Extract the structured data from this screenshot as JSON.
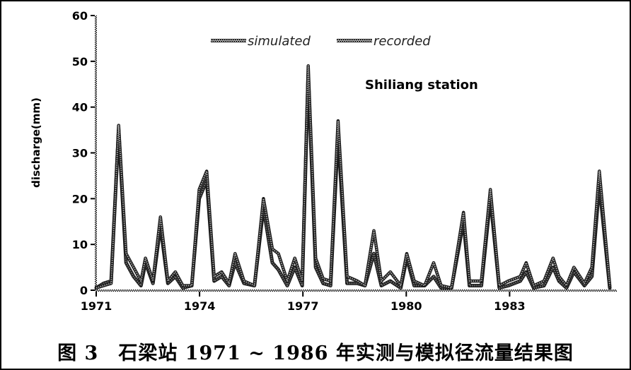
{
  "caption": "图 3　石梁站 1971 ~ 1986 年实测与模拟径流量结果图",
  "chart_data": {
    "type": "line",
    "title": "",
    "annotation": "Shiliang station",
    "xlabel": "",
    "ylabel": "discharge(mm)",
    "ylim": [
      0,
      60
    ],
    "yticks": [
      0,
      10,
      20,
      30,
      40,
      50,
      60
    ],
    "xtick_labels": [
      "1971",
      "1974",
      "1977",
      "1980",
      "1983"
    ],
    "xtick_positions": [
      0,
      3,
      6,
      9,
      12
    ],
    "xlim": [
      0,
      15.5
    ],
    "grid": false,
    "legend_position": "top",
    "series": [
      {
        "name": "simulated",
        "color": "#6e6e6e",
        "points": [
          [
            0.0,
            0.5
          ],
          [
            0.25,
            1.5
          ],
          [
            0.5,
            2
          ],
          [
            0.75,
            35
          ],
          [
            1.0,
            6
          ],
          [
            1.25,
            3
          ],
          [
            1.5,
            1
          ],
          [
            1.65,
            6
          ],
          [
            1.9,
            1.5
          ],
          [
            2.15,
            14
          ],
          [
            2.4,
            1.5
          ],
          [
            2.65,
            3
          ],
          [
            2.9,
            0.5
          ],
          [
            3.2,
            1
          ],
          [
            3.45,
            20
          ],
          [
            3.7,
            24
          ],
          [
            3.95,
            2
          ],
          [
            4.2,
            3
          ],
          [
            4.45,
            1
          ],
          [
            4.65,
            6
          ],
          [
            4.95,
            1.5
          ],
          [
            5.3,
            1
          ],
          [
            5.6,
            18
          ],
          [
            5.9,
            6
          ],
          [
            6.1,
            4.5
          ],
          [
            6.4,
            1
          ],
          [
            6.65,
            5
          ],
          [
            6.9,
            1
          ],
          [
            7.1,
            47
          ],
          [
            7.35,
            5
          ],
          [
            7.6,
            1.5
          ],
          [
            7.85,
            1
          ],
          [
            8.1,
            34
          ],
          [
            8.4,
            1.5
          ],
          [
            8.75,
            1.5
          ],
          [
            9.0,
            1
          ],
          [
            9.3,
            8
          ],
          [
            9.55,
            1
          ],
          [
            9.85,
            2
          ],
          [
            10.2,
            0.5
          ],
          [
            10.4,
            7
          ],
          [
            10.65,
            1
          ],
          [
            11.0,
            1
          ],
          [
            11.3,
            3
          ],
          [
            11.55,
            0.5
          ],
          [
            11.9,
            0.5
          ],
          [
            12.3,
            15
          ],
          [
            12.5,
            1
          ],
          [
            12.9,
            1
          ],
          [
            13.2,
            20
          ],
          [
            13.5,
            0.5
          ],
          [
            13.8,
            1
          ],
          [
            14.2,
            2
          ],
          [
            14.4,
            4
          ],
          [
            14.65,
            0.5
          ],
          [
            15.0,
            1
          ],
          [
            15.3,
            5
          ],
          [
            15.5,
            2
          ],
          [
            15.75,
            0.5
          ],
          [
            16.0,
            4
          ],
          [
            16.35,
            1
          ],
          [
            16.6,
            3
          ],
          [
            16.85,
            23
          ],
          [
            17.2,
            0.5
          ]
        ]
      },
      {
        "name": "recorded",
        "color": "#a8a8a8",
        "points": [
          [
            0.0,
            0.5
          ],
          [
            0.25,
            1
          ],
          [
            0.5,
            1.5
          ],
          [
            0.75,
            36
          ],
          [
            1.0,
            8
          ],
          [
            1.25,
            5
          ],
          [
            1.5,
            2
          ],
          [
            1.65,
            7
          ],
          [
            1.9,
            2
          ],
          [
            2.15,
            16
          ],
          [
            2.4,
            2
          ],
          [
            2.65,
            4
          ],
          [
            2.9,
            1
          ],
          [
            3.2,
            1
          ],
          [
            3.45,
            22
          ],
          [
            3.7,
            26
          ],
          [
            3.95,
            3
          ],
          [
            4.2,
            4
          ],
          [
            4.45,
            1.5
          ],
          [
            4.65,
            8
          ],
          [
            4.95,
            2
          ],
          [
            5.3,
            1
          ],
          [
            5.6,
            20
          ],
          [
            5.9,
            9
          ],
          [
            6.1,
            8
          ],
          [
            6.4,
            2
          ],
          [
            6.65,
            7
          ],
          [
            6.9,
            2
          ],
          [
            7.1,
            49
          ],
          [
            7.35,
            7
          ],
          [
            7.6,
            2.5
          ],
          [
            7.85,
            2
          ],
          [
            8.1,
            37
          ],
          [
            8.4,
            3
          ],
          [
            8.75,
            2
          ],
          [
            9.0,
            1
          ],
          [
            9.3,
            13
          ],
          [
            9.55,
            2
          ],
          [
            9.85,
            4
          ],
          [
            10.2,
            1
          ],
          [
            10.4,
            8
          ],
          [
            10.65,
            2
          ],
          [
            11.0,
            1
          ],
          [
            11.3,
            6
          ],
          [
            11.55,
            1
          ],
          [
            11.9,
            0.5
          ],
          [
            12.3,
            17
          ],
          [
            12.5,
            2
          ],
          [
            12.9,
            2
          ],
          [
            13.2,
            22
          ],
          [
            13.5,
            1
          ],
          [
            13.8,
            2
          ],
          [
            14.2,
            3
          ],
          [
            14.4,
            6
          ],
          [
            14.65,
            1
          ],
          [
            15.0,
            2
          ],
          [
            15.3,
            7
          ],
          [
            15.5,
            3
          ],
          [
            15.75,
            1
          ],
          [
            16.0,
            5
          ],
          [
            16.35,
            1.5
          ],
          [
            16.6,
            5
          ],
          [
            16.85,
            26
          ],
          [
            17.2,
            1
          ]
        ]
      }
    ]
  }
}
